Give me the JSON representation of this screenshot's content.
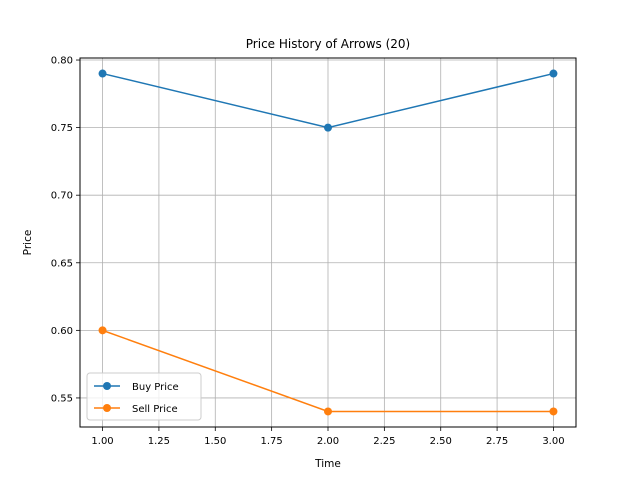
{
  "chart_data": {
    "type": "line",
    "title": "Price History of Arrows (20)",
    "xlabel": "Time",
    "ylabel": "Price",
    "xlim": [
      0.9,
      3.1
    ],
    "ylim": [
      0.5285,
      0.8015
    ],
    "xticks": [
      1.0,
      1.25,
      1.5,
      1.75,
      2.0,
      2.25,
      2.5,
      2.75,
      3.0
    ],
    "xtick_labels": [
      "1.00",
      "1.25",
      "1.50",
      "1.75",
      "2.00",
      "2.25",
      "2.50",
      "2.75",
      "3.00"
    ],
    "yticks": [
      0.55,
      0.6,
      0.65,
      0.7,
      0.75,
      0.8
    ],
    "ytick_labels": [
      "0.55",
      "0.60",
      "0.65",
      "0.70",
      "0.75",
      "0.80"
    ],
    "grid": true,
    "legend_position": "lower-left",
    "x": [
      1,
      2,
      3
    ],
    "series": [
      {
        "name": "Buy Price",
        "values": [
          0.79,
          0.75,
          0.79
        ],
        "color": "#1f77b4"
      },
      {
        "name": "Sell Price",
        "values": [
          0.6,
          0.54,
          0.54
        ],
        "color": "#ff7f0e"
      }
    ]
  }
}
